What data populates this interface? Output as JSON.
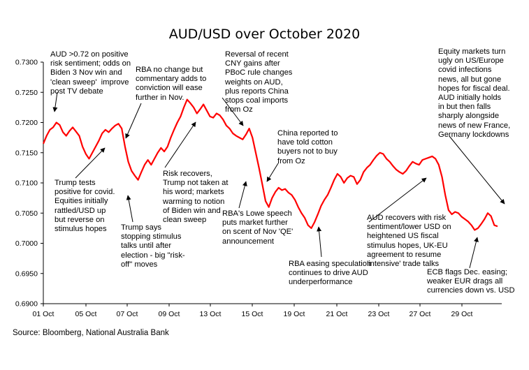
{
  "chart_data": {
    "type": "line",
    "title": "AUD/USD over October 2020",
    "xlabel": "",
    "ylabel": "",
    "ylim": [
      0.69,
      0.73
    ],
    "y_ticks": [
      "0.7300",
      "0.7250",
      "0.7200",
      "0.7150",
      "0.7100",
      "0.7050",
      "0.7000",
      "0.6950",
      "0.6900"
    ],
    "x_ticks": [
      "01 Oct",
      "05 Oct",
      "07 Oct",
      "09 Oct",
      "13 Oct",
      "15 Oct",
      "19 Oct",
      "21 Oct",
      "23 Oct",
      "27 Oct",
      "29 Oct"
    ],
    "grid": false,
    "legend": "none",
    "line_color": "#ff0000",
    "series": [
      {
        "values": [
          0.7165,
          0.7178,
          0.7188,
          0.7192,
          0.72,
          0.7196,
          0.7184,
          0.7178,
          0.7186,
          0.7192,
          0.7185,
          0.7178,
          0.716,
          0.7148,
          0.714,
          0.715,
          0.716,
          0.717,
          0.7182,
          0.7188,
          0.7184,
          0.719,
          0.7195,
          0.7198,
          0.719,
          0.716,
          0.7135,
          0.712,
          0.7112,
          0.7105,
          0.7118,
          0.713,
          0.7138,
          0.713,
          0.714,
          0.715,
          0.7158,
          0.7152,
          0.716,
          0.7175,
          0.7188,
          0.72,
          0.721,
          0.7225,
          0.7238,
          0.7232,
          0.7225,
          0.7215,
          0.7222,
          0.723,
          0.722,
          0.721,
          0.7208,
          0.7215,
          0.7212,
          0.7205,
          0.7195,
          0.719,
          0.7182,
          0.7178,
          0.7175,
          0.7172,
          0.718,
          0.719,
          0.7175,
          0.715,
          0.7125,
          0.7098,
          0.707,
          0.706,
          0.7075,
          0.7085,
          0.7092,
          0.7088,
          0.709,
          0.7084,
          0.708,
          0.7072,
          0.706,
          0.705,
          0.7042,
          0.703,
          0.7025,
          0.7035,
          0.7048,
          0.7062,
          0.7072,
          0.708,
          0.7092,
          0.7105,
          0.7115,
          0.711,
          0.71,
          0.7108,
          0.7112,
          0.711,
          0.7098,
          0.7105,
          0.7118,
          0.7125,
          0.713,
          0.7138,
          0.7145,
          0.715,
          0.7148,
          0.714,
          0.7135,
          0.7128,
          0.7122,
          0.7118,
          0.7115,
          0.712,
          0.7128,
          0.7135,
          0.7132,
          0.713,
          0.7138,
          0.714,
          0.7142,
          0.7144,
          0.714,
          0.713,
          0.711,
          0.708,
          0.7055,
          0.7048,
          0.7052,
          0.705,
          0.7044,
          0.704,
          0.7036,
          0.703,
          0.7022,
          0.7025,
          0.7032,
          0.704,
          0.705,
          0.7045,
          0.703,
          0.7028
        ]
      }
    ],
    "annotations": [
      "AUD >0.72 on positive\nrisk sentiment; odds on\nBiden 3 Nov win and\n'clean sweep'  improve\npost TV debate",
      "RBA no change but\ncommentary adds to\nconviction will ease\nfurther in Nov.",
      "Reversal of recent\nCNY gains after\nPBoC rule changes\nweights on AUD,\nplus reports China\nstops coal imports\nfrom Oz",
      "Equity markets turn\nugly on US/Europe\ncovid infections\nnews, all but gone\nhopes for fiscal deal.\nAUD initially holds\nin but then falls\nsharply alongside\nnews of new France,\nGermany lockdowns",
      "China reported to\nhave told cotton\nbuyers not to buy\nfrom Oz",
      "Trump tests\npositive for covid.\nEquities initially\nrattled/USD up\nbut reverse on\nstimulus hopes",
      "Risk recovers,\nTrump not taken at\nhis word; markets\nwarming to notion\nof Biden win and\nclean sweep",
      "Trump says\nstopping stimulus\ntalks until after\nelection - big \"risk-\noff\" moves",
      "RBA's Lowe speech\nputs market further\non scent of Nov 'QE'\nannouncement",
      "AUD recovers with risk\nsentiment/lower USD on\nheightened US fiscal\nstimulus hopes, UK-EU\nagreement to resume\n'intensive' trade talks",
      "RBA easing speculation\ncontinues to drive AUD\nunderperformance",
      "ECB flags Dec. easing;\nweaker EUR drags all\ncurrencies down vs. USD"
    ]
  },
  "source": "Source: Bloomberg, National Australia Bank"
}
